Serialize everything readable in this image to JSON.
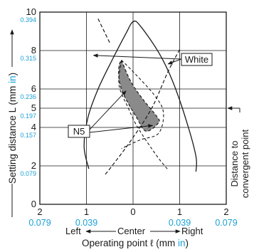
{
  "chart_data": {
    "type": "line",
    "xlabel": "Operating point ℓ (mm in)",
    "xlabel_main": "Operating point ℓ (mm ",
    "xlabel_unit": "in",
    "xlabel_close": ")",
    "ylabel": "Setting distance L (mm in)",
    "ylabel_main": "Setting distance L (mm ",
    "ylabel_unit": "in",
    "ylabel_close": ")",
    "xlim": [
      -2,
      2
    ],
    "ylim": [
      0,
      10
    ],
    "grid": true,
    "x_ticks": [
      {
        "value": -2,
        "mm": "2",
        "in": "0.079"
      },
      {
        "value": -1,
        "mm": "1",
        "in": "0.039"
      },
      {
        "value": 0,
        "mm": "0",
        "in": ""
      },
      {
        "value": 1,
        "mm": "1",
        "in": "0.039"
      },
      {
        "value": 2,
        "mm": "2",
        "in": "0.079"
      }
    ],
    "y_ticks_mm": [
      {
        "value": 0,
        "label": "0"
      },
      {
        "value": 2,
        "label": "2"
      },
      {
        "value": 4,
        "label": "4"
      },
      {
        "value": 5,
        "label": "5"
      },
      {
        "value": 6,
        "label": "6"
      },
      {
        "value": 8,
        "label": "8"
      },
      {
        "value": 10,
        "label": "10"
      }
    ],
    "y_ticks_in": [
      {
        "value": 2,
        "label": "0.079"
      },
      {
        "value": 4,
        "label": "0.157"
      },
      {
        "value": 5,
        "label": "0.197"
      },
      {
        "value": 6,
        "label": "0.236"
      },
      {
        "value": 8,
        "label": "0.315"
      },
      {
        "value": 10,
        "label": "0.394"
      }
    ],
    "direction": {
      "left": "Left",
      "center": "Center",
      "right": "Right"
    },
    "side_label": [
      "Distance to",
      "convergent point"
    ],
    "convergent_point_y": 5,
    "series": [
      {
        "name": "White",
        "outer": [
          [
            -0.95,
            1.85
          ],
          [
            -1.05,
            3.0
          ],
          [
            -0.97,
            4.5
          ],
          [
            -0.75,
            6.0
          ],
          [
            -0.45,
            7.5
          ],
          [
            -0.15,
            8.9
          ],
          [
            0.0,
            9.5
          ],
          [
            0.15,
            9.3
          ],
          [
            0.55,
            7.9
          ],
          [
            0.85,
            6.4
          ],
          [
            1.15,
            4.3
          ],
          [
            1.35,
            2.5
          ],
          [
            1.35,
            1.7
          ]
        ],
        "inner": [
          [
            1.0,
            8.05
          ],
          [
            0.75,
            6.9
          ],
          [
            0.4,
            5.0
          ],
          [
            -0.05,
            3.3
          ],
          [
            -0.45,
            2.0
          ],
          [
            -0.6,
            1.55
          ]
        ],
        "tail": [
          [
            -0.75,
            9.65
          ],
          [
            -0.5,
            8.4
          ]
        ]
      },
      {
        "name": "N5",
        "region": [
          [
            -0.25,
            7.5
          ],
          [
            -0.05,
            6.4
          ],
          [
            0.2,
            5.5
          ],
          [
            0.5,
            4.6
          ],
          [
            0.55,
            4.25
          ],
          [
            0.28,
            3.8
          ],
          [
            0.08,
            4.5
          ],
          [
            -0.2,
            5.7
          ],
          [
            -0.3,
            6.5
          ],
          [
            -0.3,
            7.2
          ],
          [
            -0.25,
            7.5
          ]
        ],
        "left_curve": [
          [
            -0.25,
            7.5
          ],
          [
            -0.3,
            6.2
          ],
          [
            -0.1,
            5.0
          ],
          [
            0.1,
            4.0
          ],
          [
            0.5,
            2.55
          ],
          [
            0.75,
            1.8
          ]
        ],
        "right_curve": [
          [
            -0.25,
            7.5
          ],
          [
            0.0,
            6.9
          ],
          [
            0.45,
            5.7
          ],
          [
            0.65,
            4.8
          ],
          [
            0.55,
            3.7
          ],
          [
            0.15,
            3.35
          ],
          [
            -0.25,
            2.9
          ]
        ]
      }
    ]
  }
}
